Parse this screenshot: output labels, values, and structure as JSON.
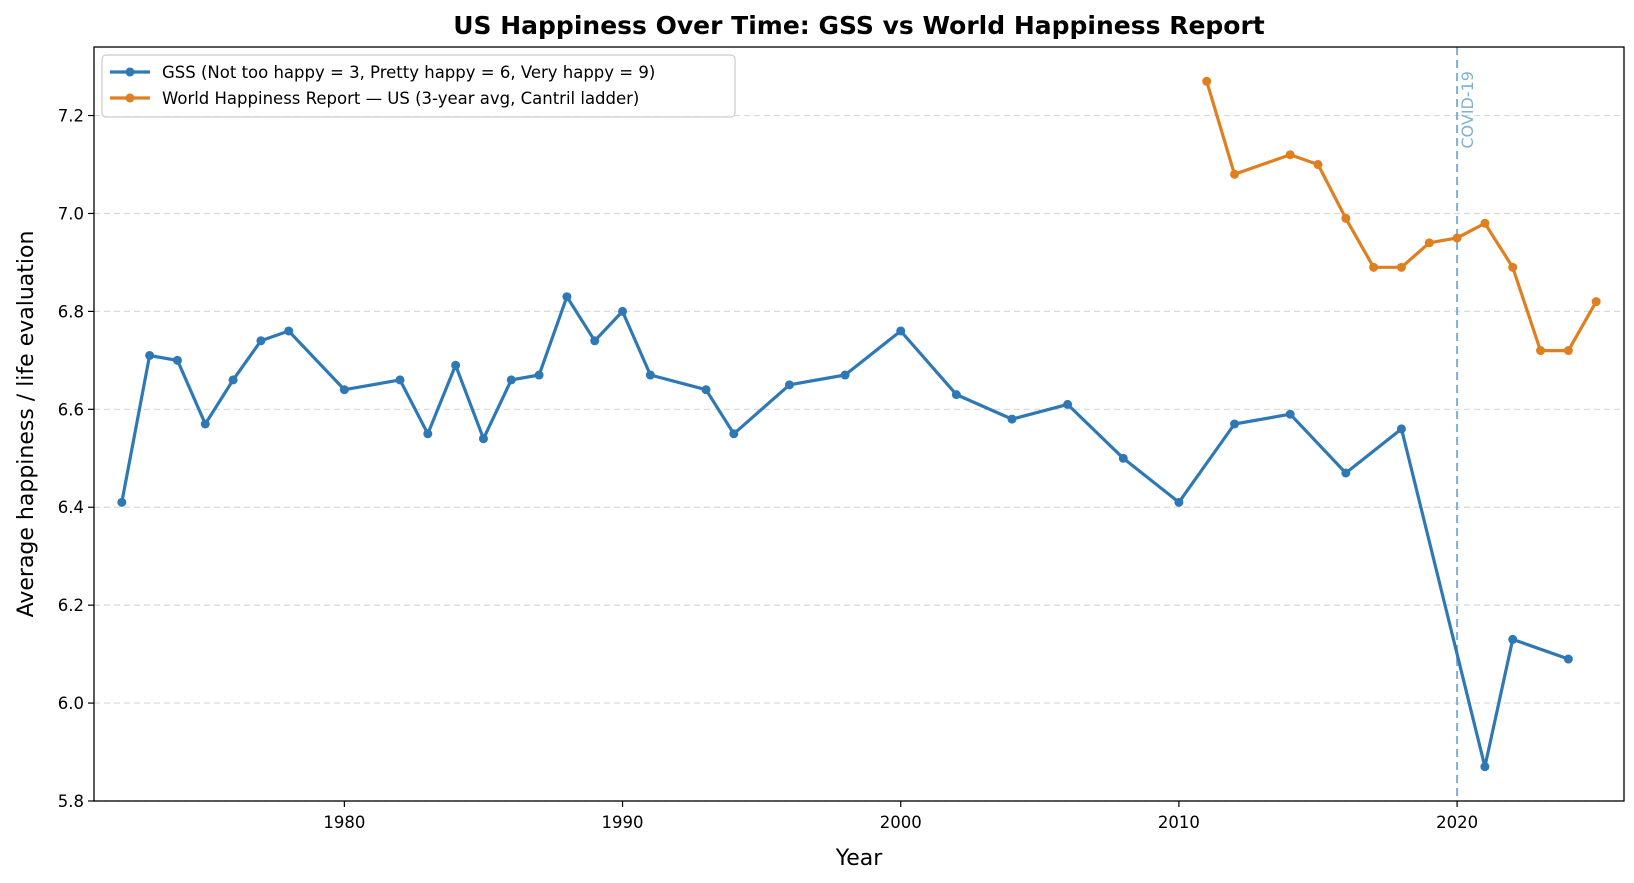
{
  "chart_data": {
    "type": "line",
    "title": "US Happiness Over Time: GSS vs World Happiness Report",
    "xlabel": "Year",
    "ylabel": "Average happiness / life evaluation",
    "xlim": [
      1971,
      2026
    ],
    "ylim": [
      5.8,
      7.34
    ],
    "xticks": [
      1980,
      1990,
      2000,
      2010,
      2020
    ],
    "yticks": [
      5.8,
      6.0,
      6.2,
      6.4,
      6.6,
      6.8,
      7.0,
      7.2
    ],
    "grid": "horizontal dashed",
    "legend_position": "upper-left",
    "series": [
      {
        "name": "GSS (Not too happy = 3, Pretty happy = 6, Very happy = 9)",
        "color": "#2e79b5",
        "x": [
          1972,
          1973,
          1974,
          1975,
          1976,
          1977,
          1978,
          1980,
          1982,
          1983,
          1984,
          1985,
          1986,
          1987,
          1988,
          1989,
          1990,
          1991,
          1993,
          1994,
          1996,
          1998,
          2000,
          2002,
          2004,
          2006,
          2008,
          2010,
          2012,
          2014,
          2016,
          2018,
          2021,
          2022,
          2024
        ],
        "y": [
          6.41,
          6.71,
          6.7,
          6.57,
          6.66,
          6.74,
          6.76,
          6.64,
          6.66,
          6.55,
          6.69,
          6.54,
          6.66,
          6.67,
          6.83,
          6.74,
          6.8,
          6.67,
          6.64,
          6.55,
          6.65,
          6.67,
          6.76,
          6.63,
          6.58,
          6.61,
          6.5,
          6.41,
          6.57,
          6.59,
          6.47,
          6.56,
          5.87,
          6.13,
          6.09
        ]
      },
      {
        "name": "World Happiness Report — US (3-year avg, Cantril ladder)",
        "color": "#e07f1f",
        "x": [
          2011,
          2012,
          2014,
          2015,
          2016,
          2017,
          2018,
          2019,
          2020,
          2021,
          2022,
          2023,
          2024,
          2025
        ],
        "y": [
          7.27,
          7.08,
          7.12,
          7.1,
          6.99,
          6.89,
          6.89,
          6.94,
          6.95,
          6.98,
          6.89,
          6.72,
          6.72,
          6.82
        ]
      }
    ],
    "annotations": [
      {
        "type": "vertical-line",
        "x": 2020,
        "label": "COVID-19",
        "color": "#7fb0d5"
      }
    ]
  }
}
